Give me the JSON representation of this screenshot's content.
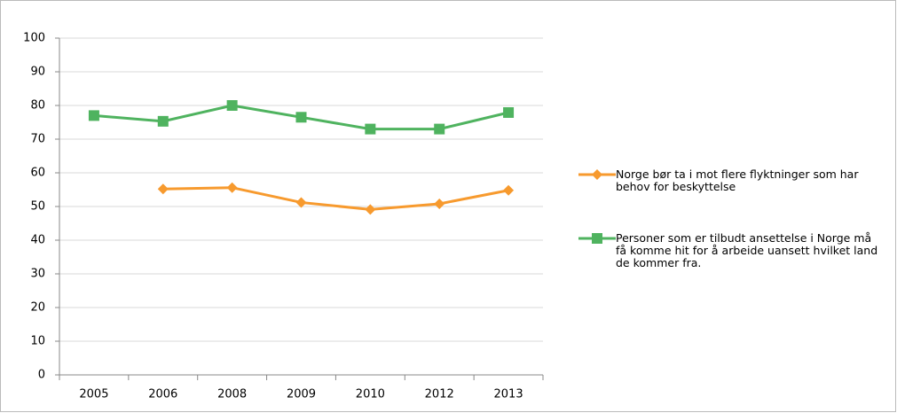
{
  "chart_data": {
    "type": "line",
    "categories": [
      "2005",
      "2006",
      "2008",
      "2009",
      "2010",
      "2012",
      "2013"
    ],
    "series": [
      {
        "name": "Norge bør ta i mot flere flyktninger som har behov for beskyttelse",
        "color": "#f79a2e",
        "marker": "diamond",
        "values": [
          null,
          55.2,
          55.6,
          51.2,
          49.1,
          50.8,
          54.8
        ]
      },
      {
        "name": "Personer som er tilbudt ansettelse i Norge må få komme hit for å arbeide uansett hvilket land de kommer fra.",
        "color": "#4fb35f",
        "marker": "square",
        "values": [
          77,
          75.3,
          80,
          76.5,
          73,
          73,
          77.9
        ]
      }
    ],
    "ylim": [
      0,
      100
    ],
    "yticks": [
      0,
      10,
      20,
      30,
      40,
      50,
      60,
      70,
      80,
      90,
      100
    ],
    "grid": true,
    "legend": "right"
  }
}
